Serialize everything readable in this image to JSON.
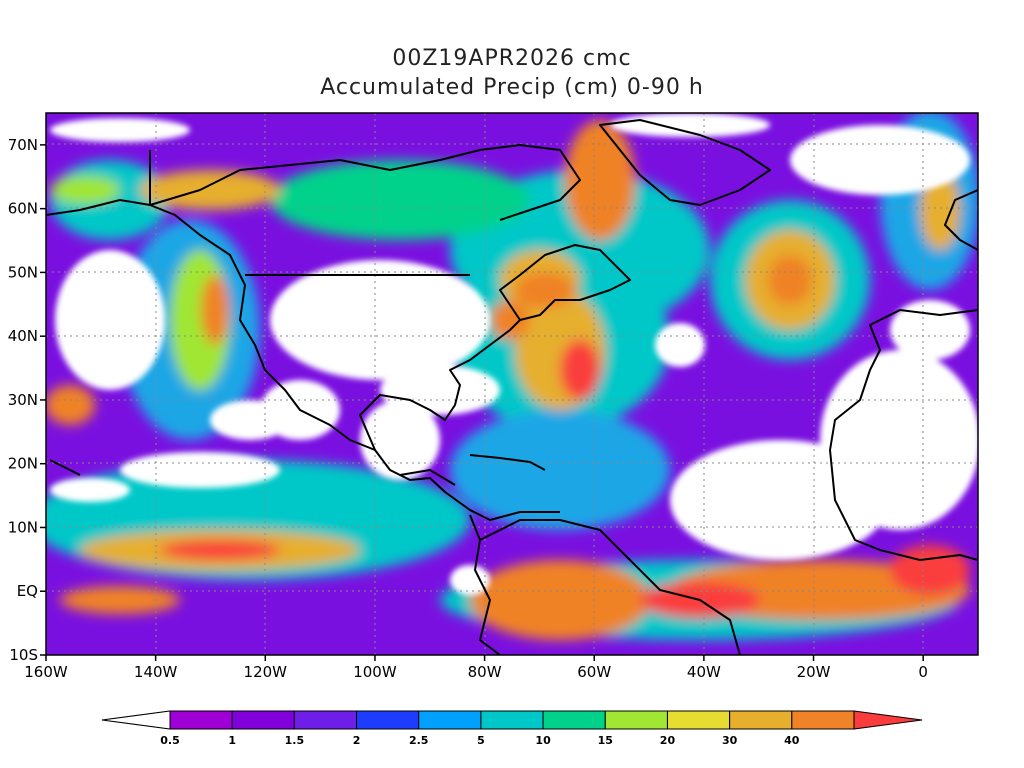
{
  "header": {
    "title_line1": "00Z19APR2026 cmc",
    "title_line2": "Accumulated Precip (cm) 0-90 h"
  },
  "map": {
    "lon_range": [
      -160,
      10
    ],
    "lat_range": [
      -10,
      75
    ],
    "lon_ticks": [
      {
        "value": -160,
        "label": "160W"
      },
      {
        "value": -140,
        "label": "140W"
      },
      {
        "value": -120,
        "label": "120W"
      },
      {
        "value": -100,
        "label": "100W"
      },
      {
        "value": -80,
        "label": "80W"
      },
      {
        "value": -60,
        "label": "60W"
      },
      {
        "value": -40,
        "label": "40W"
      },
      {
        "value": -20,
        "label": "20W"
      },
      {
        "value": 0,
        "label": "0"
      }
    ],
    "lat_ticks": [
      {
        "value": -10,
        "label": "10S"
      },
      {
        "value": 0,
        "label": "EQ"
      },
      {
        "value": 10,
        "label": "10N"
      },
      {
        "value": 20,
        "label": "20N"
      },
      {
        "value": 30,
        "label": "30N"
      },
      {
        "value": 40,
        "label": "40N"
      },
      {
        "value": 50,
        "label": "50N"
      },
      {
        "value": 60,
        "label": "60N"
      },
      {
        "value": 70,
        "label": "70N"
      }
    ]
  },
  "colorbar": {
    "levels": [
      "0.5",
      "1",
      "1.5",
      "2",
      "2.5",
      "5",
      "10",
      "15",
      "20",
      "30",
      "40"
    ],
    "colors": [
      "#ffffff",
      "#a000d8",
      "#8200dc",
      "#6e1ee6",
      "#1e3cff",
      "#00a0ff",
      "#00c8c8",
      "#00d28c",
      "#a0e632",
      "#e6dc32",
      "#e6af2d",
      "#f08228",
      "#fa3c3c"
    ]
  }
}
